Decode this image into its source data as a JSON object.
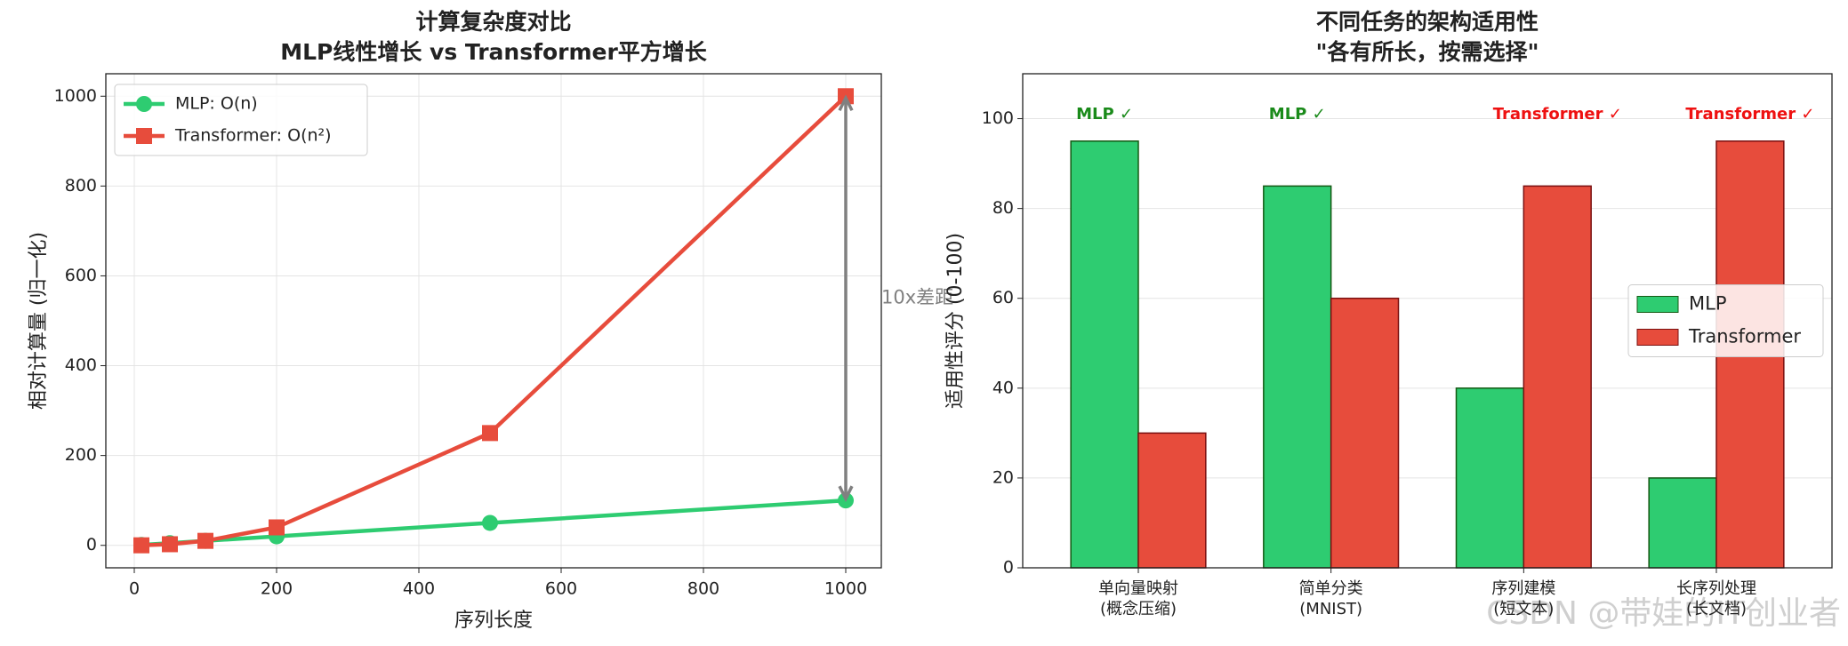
{
  "chart_data": [
    {
      "type": "line",
      "title": [
        "计算复杂度对比",
        "MLP线性增长 vs Transformer平方增长"
      ],
      "xlabel": "序列长度",
      "ylabel": "相对计算量 (归一化)",
      "x": [
        10,
        50,
        100,
        200,
        500,
        1000
      ],
      "series": [
        {
          "name": "MLP: O(n)",
          "color": "#2ecc71",
          "marker": "circle",
          "values": [
            1,
            5,
            10,
            20,
            50,
            100
          ]
        },
        {
          "name": "Transformer: O(n²)",
          "color": "#e74c3c",
          "marker": "square",
          "values": [
            0.1,
            2.5,
            10,
            40,
            250,
            1000
          ]
        }
      ],
      "annotation": "10x差距",
      "xlim": [
        -40,
        1050
      ],
      "xticks": [
        0,
        200,
        400,
        600,
        800,
        1000
      ],
      "ylim": [
        -50,
        1050
      ],
      "yticks": [
        0,
        200,
        400,
        600,
        800,
        1000
      ],
      "grid": true,
      "legend": "upper left"
    },
    {
      "type": "bar",
      "title": [
        "不同任务的架构适用性",
        "\"各有所长，按需选择\""
      ],
      "ylabel": "适用性评分 (0-100)",
      "categories": [
        [
          "单向量映射",
          "(概念压缩)"
        ],
        [
          "简单分类",
          "(MNIST)"
        ],
        [
          "序列建模",
          "(短文本)"
        ],
        [
          "长序列处理",
          "(长文档)"
        ]
      ],
      "series": [
        {
          "name": "MLP",
          "color": "#2ecc71",
          "edgecolor": "#145a14",
          "values": [
            95,
            85,
            40,
            20
          ]
        },
        {
          "name": "Transformer",
          "color": "#e74c3c",
          "edgecolor": "#7a1010",
          "values": [
            30,
            60,
            85,
            95
          ]
        }
      ],
      "annotations": [
        "MLP ✓",
        "MLP ✓",
        "Transformer ✓",
        "Transformer ✓"
      ],
      "ylim": [
        0,
        110
      ],
      "yticks": [
        0,
        20,
        40,
        60,
        80,
        100
      ],
      "grid": true,
      "legend": "center right"
    }
  ],
  "watermark": "CSDN @带娃的IT创业者"
}
